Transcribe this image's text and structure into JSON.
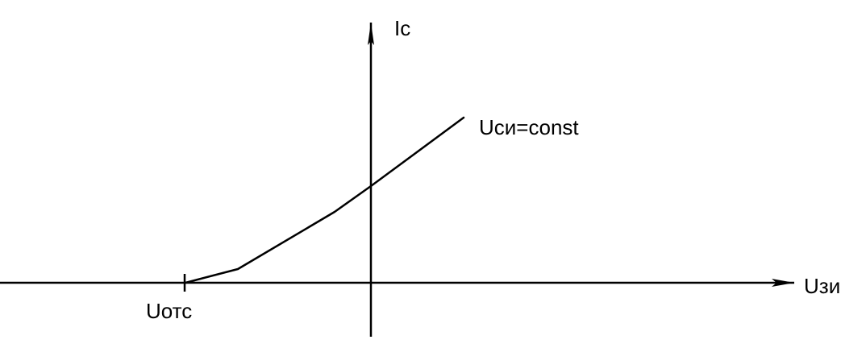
{
  "chart_data": {
    "type": "line",
    "x_axis_label": "Uзи",
    "y_axis_label": "Ic",
    "cutoff_label": "Uотс",
    "curve_label": "Uси=const",
    "grid": false,
    "axis_ticks": false,
    "curve_points": [
      {
        "x": -230,
        "y": 0
      },
      {
        "x": -165,
        "y": 17
      },
      {
        "x": -45,
        "y": 88
      },
      {
        "x": 0,
        "y": 120
      },
      {
        "x": 115,
        "y": 205
      }
    ]
  },
  "colors": {
    "background": "#ffffff",
    "ink": "#000000"
  }
}
